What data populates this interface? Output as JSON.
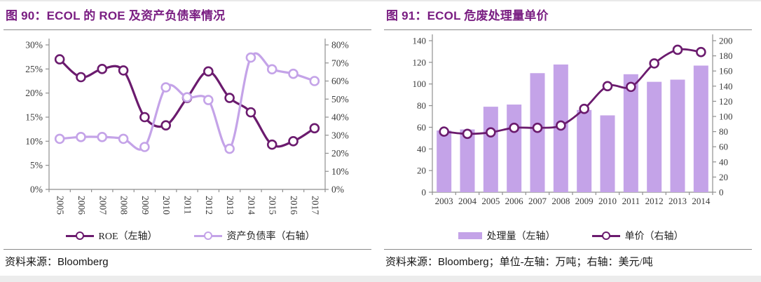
{
  "panels": [
    {
      "title": "图 90：ECOL 的 ROE 及资产负债率情况",
      "source_prefix": "资料来源：",
      "source_name": "Bloomberg",
      "source_suffix": ""
    },
    {
      "title": "图 91：ECOL 危废处理量单价",
      "source_prefix": "资料来源：",
      "source_name": "Bloomberg",
      "source_suffix": "；单位-左轴：万吨；右轴：美元/吨"
    }
  ],
  "colors": {
    "title": "#7a1e82",
    "dark_series": "#6b1b6e",
    "light_series": "#c4a3e8",
    "axis": "#8f8f8f",
    "tick_text": "#3a3a3a"
  },
  "chart_data": [
    {
      "type": "line",
      "title": "图 90：ECOL 的 ROE 及资产负债率情况",
      "x": [
        "2005",
        "2006",
        "2007",
        "2008",
        "2009",
        "2010",
        "2011",
        "2012",
        "2013",
        "2014",
        "2015",
        "2016",
        "2017"
      ],
      "series": [
        {
          "name": "ROE（左轴）",
          "style": "line",
          "axis": "left",
          "color": "#6b1b6e",
          "values": [
            27,
            23.3,
            25,
            24.7,
            15,
            13.3,
            19,
            24.5,
            19,
            16,
            9.3,
            10,
            12.7
          ]
        },
        {
          "name": "资产负债率（右轴）",
          "style": "line",
          "axis": "right",
          "color": "#c4a3e8",
          "values": [
            28,
            29,
            29,
            28,
            23.5,
            56.5,
            51,
            49.5,
            22.5,
            73,
            66.5,
            64,
            60
          ]
        }
      ],
      "left_axis": {
        "min": 0,
        "max": 30,
        "step": 5,
        "suffix": "%"
      },
      "right_axis": {
        "min": 0,
        "max": 80,
        "step": 10,
        "suffix": "%"
      },
      "x_labels_vertical": true,
      "grid": false,
      "legend_position": "bottom"
    },
    {
      "type": "bar+line",
      "title": "图 91：ECOL 危废处理量单价",
      "x": [
        "2003",
        "2004",
        "2005",
        "2006",
        "2007",
        "2008",
        "2009",
        "2010",
        "2011",
        "2012",
        "2013",
        "2014"
      ],
      "series": [
        {
          "name": "处理量（左轴）",
          "style": "bar",
          "axis": "left",
          "color": "#c4a3e8",
          "values": [
            57,
            58,
            79,
            81,
            110,
            118,
            76,
            71,
            109,
            102,
            104,
            117
          ]
        },
        {
          "name": "单价（右轴）",
          "style": "line",
          "axis": "right",
          "color": "#6b1b6e",
          "values": [
            80,
            77,
            79,
            85,
            85,
            88,
            110,
            140,
            139,
            170,
            188,
            185
          ]
        }
      ],
      "left_axis": {
        "min": 0,
        "max": 140,
        "step": 20,
        "suffix": ""
      },
      "right_axis": {
        "min": 0,
        "max": 200,
        "step": 20,
        "suffix": ""
      },
      "x_labels_vertical": false,
      "grid": false,
      "legend_position": "bottom"
    }
  ]
}
